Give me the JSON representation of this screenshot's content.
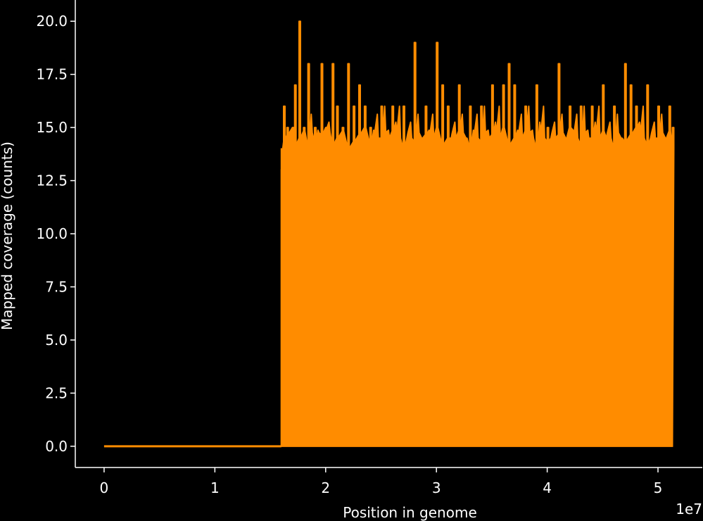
{
  "chart_data": {
    "type": "line",
    "title": "",
    "xlabel": "Position in genome",
    "ylabel": "Mapped coverage (counts)",
    "x_offset_label": "1e7",
    "xlim": [
      -0.26,
      5.4
    ],
    "ylim": [
      -1.0,
      21.0
    ],
    "x_ticks": [
      0,
      1,
      2,
      3,
      4,
      5
    ],
    "x_tick_labels": [
      "0",
      "1",
      "2",
      "3",
      "4",
      "5"
    ],
    "y_ticks": [
      0.0,
      2.5,
      5.0,
      7.5,
      10.0,
      12.5,
      15.0,
      17.5,
      20.0
    ],
    "y_tick_labels": [
      "0.0",
      "2.5",
      "5.0",
      "7.5",
      "10.0",
      "12.5",
      "15.0",
      "17.5",
      "20.0"
    ],
    "grid": false,
    "legend": "none",
    "series": [
      {
        "color": "#ff8c00",
        "x": [
          0.0,
          1.6,
          1.6,
          5.13,
          5.13
        ],
        "y": [
          0,
          0,
          13,
          13,
          0
        ],
        "envelope_x": [
          1.6,
          1.62,
          1.65,
          1.7,
          1.72,
          1.76,
          1.8,
          1.84,
          1.9,
          1.96,
          2.0,
          2.06,
          2.1,
          2.15,
          2.2,
          2.25,
          2.3,
          2.35,
          2.4,
          2.5,
          2.6,
          2.7,
          2.8,
          2.9,
          3.0,
          3.05,
          3.1,
          3.2,
          3.3,
          3.4,
          3.5,
          3.6,
          3.65,
          3.7,
          3.8,
          3.9,
          4.0,
          4.1,
          4.2,
          4.3,
          4.4,
          4.5,
          4.6,
          4.7,
          4.75,
          4.8,
          4.9,
          5.0,
          5.1,
          5.13
        ],
        "envelope_y": [
          13,
          16,
          15,
          15,
          17,
          20,
          15,
          18,
          15,
          18,
          15,
          18,
          16,
          15,
          18,
          16,
          17,
          16,
          15,
          16,
          16,
          16,
          19,
          16,
          19,
          17,
          16,
          17,
          16,
          16,
          17,
          17,
          18,
          17,
          16,
          17,
          15,
          18,
          16,
          16,
          16,
          17,
          16,
          18,
          17,
          16,
          17,
          16,
          16,
          15
        ]
      }
    ]
  }
}
